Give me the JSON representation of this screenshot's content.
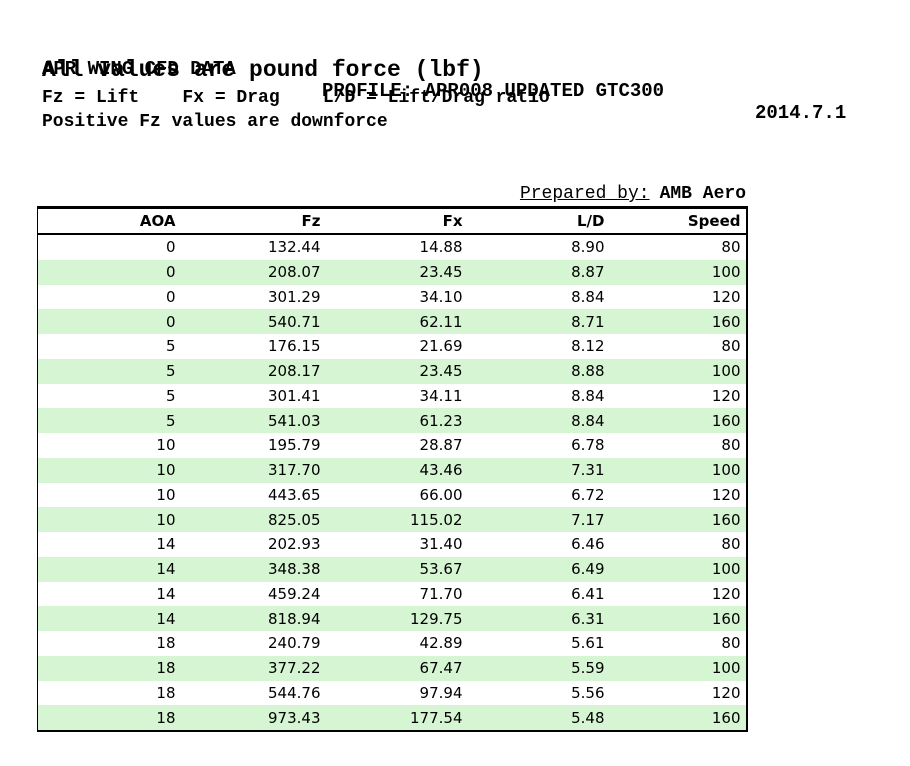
{
  "header": {
    "line1_left": "APR WING CFD DATA",
    "line1_center": "PROFILE: APR008 UPDATED GTC300",
    "line1_right": "2014.7.1",
    "line2": "All values are pound force (lbf)",
    "line3": "Fz = Lift    Fx = Drag    L/D = Lift/Drag ratio",
    "line4": "Positive Fz values are downforce"
  },
  "prepared_by": {
    "label": "Prepared by:",
    "value": "AMB Aero"
  },
  "colors": {
    "row_stripe": "#d6f5d3",
    "border": "#000000",
    "text": "#000000",
    "background": "#ffffff"
  },
  "chart_data": {
    "type": "table",
    "title": "APR WING CFD DATA",
    "units": "lbf",
    "notes": [
      "All values are pound force (lbf)",
      "Fz = Lift",
      "Fx = Drag",
      "L/D = Lift/Drag ratio",
      "Positive Fz values are downforce"
    ],
    "columns": [
      "AOA",
      "Fz",
      "Fx",
      "L/D",
      "Speed"
    ],
    "rows": [
      [
        "0",
        "132.44",
        "14.88",
        "8.90",
        "80"
      ],
      [
        "0",
        "208.07",
        "23.45",
        "8.87",
        "100"
      ],
      [
        "0",
        "301.29",
        "34.10",
        "8.84",
        "120"
      ],
      [
        "0",
        "540.71",
        "62.11",
        "8.71",
        "160"
      ],
      [
        "5",
        "176.15",
        "21.69",
        "8.12",
        "80"
      ],
      [
        "5",
        "208.17",
        "23.45",
        "8.88",
        "100"
      ],
      [
        "5",
        "301.41",
        "34.11",
        "8.84",
        "120"
      ],
      [
        "5",
        "541.03",
        "61.23",
        "8.84",
        "160"
      ],
      [
        "10",
        "195.79",
        "28.87",
        "6.78",
        "80"
      ],
      [
        "10",
        "317.70",
        "43.46",
        "7.31",
        "100"
      ],
      [
        "10",
        "443.65",
        "66.00",
        "6.72",
        "120"
      ],
      [
        "10",
        "825.05",
        "115.02",
        "7.17",
        "160"
      ],
      [
        "14",
        "202.93",
        "31.40",
        "6.46",
        "80"
      ],
      [
        "14",
        "348.38",
        "53.67",
        "6.49",
        "100"
      ],
      [
        "14",
        "459.24",
        "71.70",
        "6.41",
        "120"
      ],
      [
        "14",
        "818.94",
        "129.75",
        "6.31",
        "160"
      ],
      [
        "18",
        "240.79",
        "42.89",
        "5.61",
        "80"
      ],
      [
        "18",
        "377.22",
        "67.47",
        "5.59",
        "100"
      ],
      [
        "18",
        "544.76",
        "97.94",
        "5.56",
        "120"
      ],
      [
        "18",
        "973.43",
        "177.54",
        "5.48",
        "160"
      ]
    ]
  }
}
